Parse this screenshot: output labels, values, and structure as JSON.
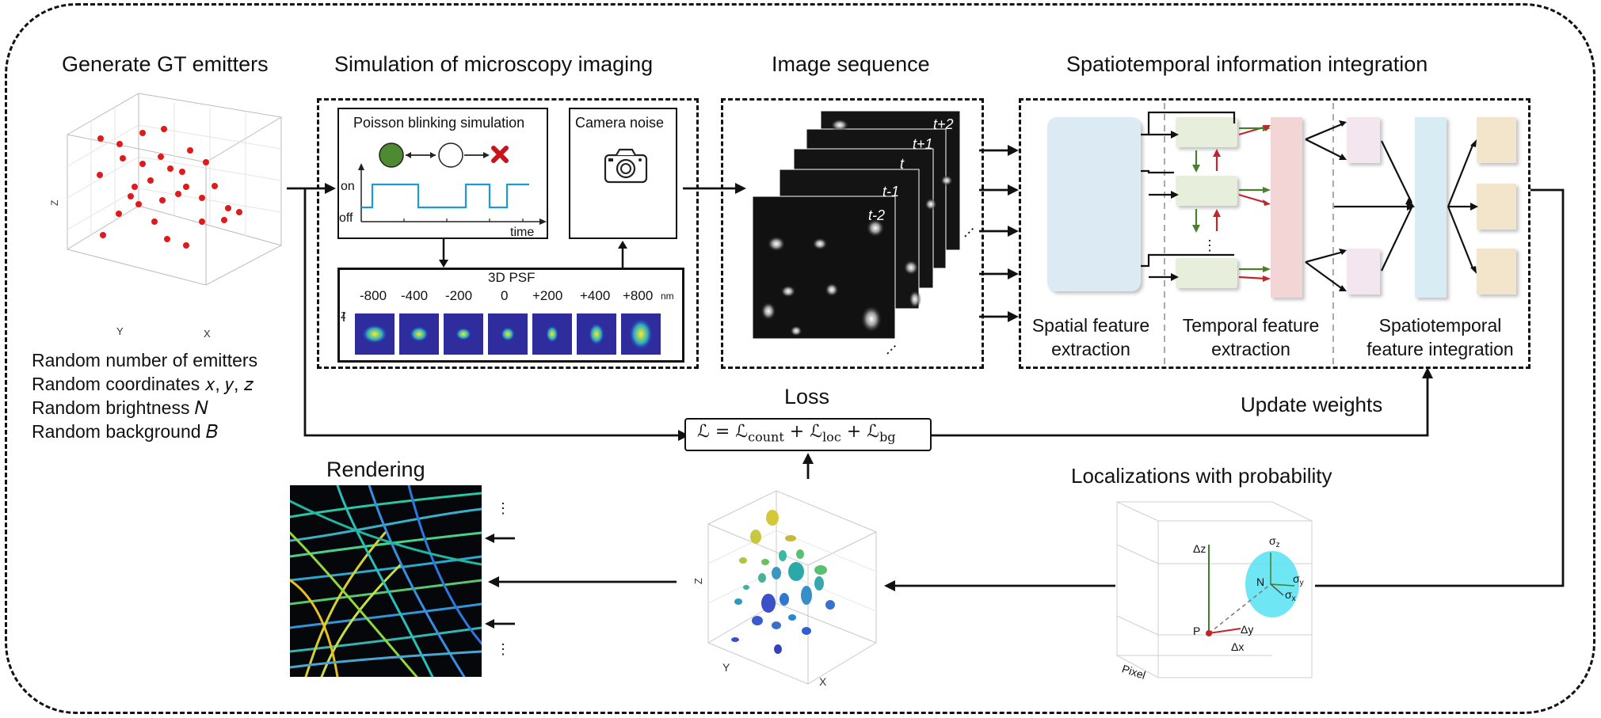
{
  "sections": {
    "generate": "Generate GT emitters",
    "simulation": "Simulation of microscopy imaging",
    "sequence": "Image sequence",
    "integration": "Spatiotemporal information integration",
    "loss_title": "Loss",
    "update": "Update weights",
    "localizations": "Localizations with probability",
    "rendering": "Rendering"
  },
  "emitter_params": [
    "Random number of emitters",
    "Random coordinates 𝑥, 𝑦, 𝑧",
    "Random brightness 𝑁",
    "Random background 𝐵"
  ],
  "scatter_axes": {
    "z": "Z",
    "y": "Y",
    "x": "X"
  },
  "blinking": {
    "title": "Poisson blinking simulation",
    "on": "on",
    "off": "off",
    "time": "time"
  },
  "camera": {
    "title": "Camera noise"
  },
  "psf": {
    "title": "3D PSF",
    "depths": [
      "-800",
      "-400",
      "-200",
      "0",
      "+200",
      "+400",
      "+800"
    ],
    "unit": "nm",
    "axis": "Z"
  },
  "frames": [
    "t+2",
    "t+1",
    "t",
    "t-1",
    "t-2"
  ],
  "ellipsis": "⋮",
  "network": {
    "spatial": [
      "Spatial feature",
      "extraction"
    ],
    "temporal": [
      "Temporal feature",
      "extraction"
    ],
    "integration": [
      "Spatiotemporal",
      "feature integration"
    ]
  },
  "loss_formula": {
    "lhs": "ℒ",
    "terms": [
      "ℒ",
      "count",
      "ℒ",
      "loc",
      "ℒ",
      "bg"
    ]
  },
  "vol_axes": {
    "z": "Z",
    "y": "Y",
    "x": "X"
  },
  "loc_diagram": {
    "dz": "Δz",
    "dy": "Δy",
    "dx": "Δx",
    "p": "P",
    "n": "N",
    "sz": "σ",
    "sz_sub": "z",
    "sy": "σ",
    "sy_sub": "y",
    "sx": "σ",
    "sx_sub": "x",
    "pixel": "Pixel"
  },
  "colors": {
    "spatial_block": "#dcebf3",
    "temporal_block": "#e7eedc",
    "temporal_merge": "#f3d5d6",
    "integ_small": "#f3e6ef",
    "integ_center": "#d8ecf4",
    "output_block": "#f3e4cc",
    "green_arrow": "#4a7f2e",
    "red_arrow": "#c0262b",
    "signal": "#1a9bd6"
  }
}
